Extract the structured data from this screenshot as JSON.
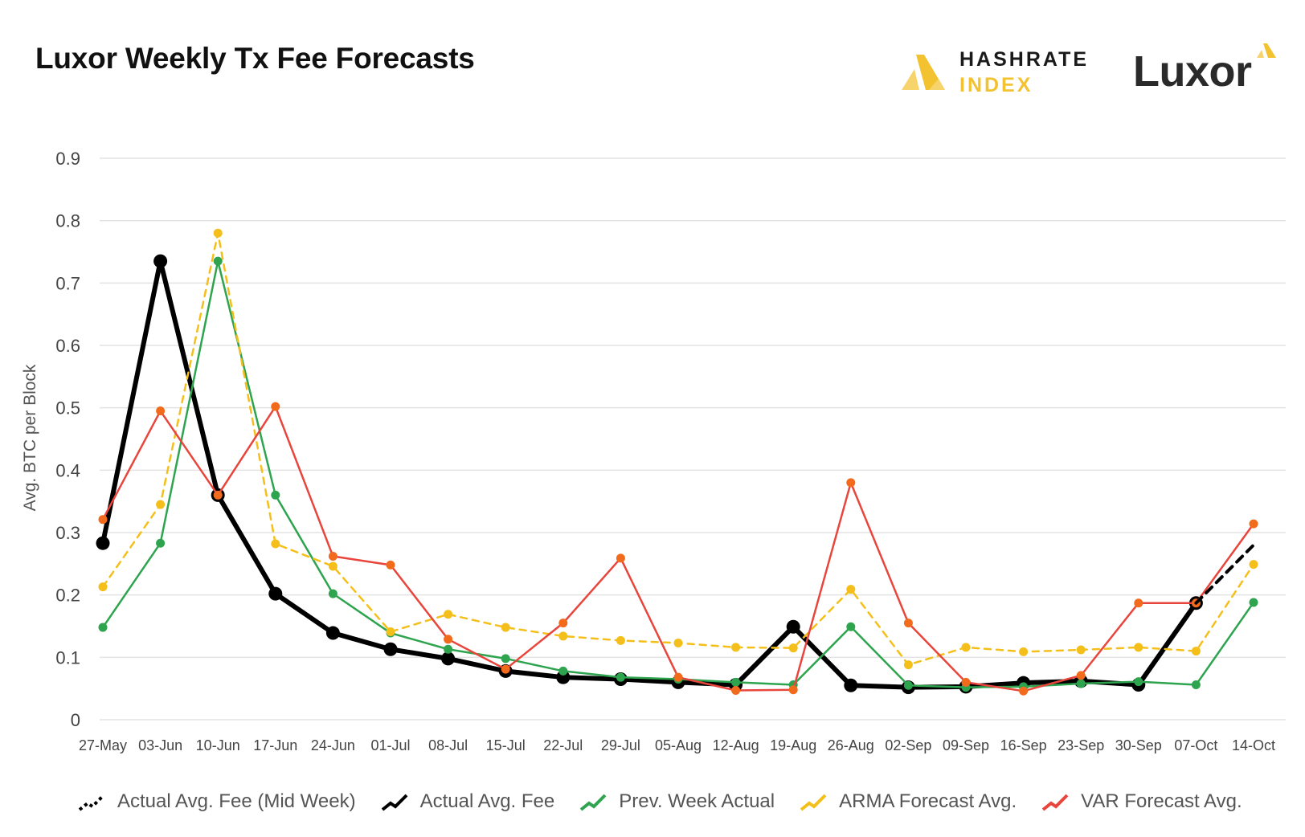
{
  "title": "Luxor Weekly Tx Fee Forecasts",
  "logos": {
    "hashrate_line1": "HASHRATE",
    "hashrate_line2": "INDEX",
    "luxor": "Luxor"
  },
  "colors": {
    "actual": "#000000",
    "prev_week": "#2ea44f",
    "arma": "#f5bf1b",
    "var_line": "#e8453c",
    "var_marker": "#f26a1b",
    "grid": "#e3e3e3",
    "axis_text": "#444444"
  },
  "chart_data": {
    "type": "line",
    "title": "Luxor Weekly Tx Fee Forecasts",
    "xlabel": "",
    "ylabel": "Avg. BTC per Block",
    "ylim": [
      0,
      0.9
    ],
    "yticks": [
      0,
      0.1,
      0.2,
      0.3,
      0.4,
      0.5,
      0.6,
      0.7,
      0.8,
      0.9
    ],
    "ytick_labels": [
      "0",
      "0.1",
      "0.2",
      "0.3",
      "0.4",
      "0.5",
      "0.6",
      "0.7",
      "0.8",
      "0.9"
    ],
    "grid": true,
    "legend_position": "bottom",
    "categories": [
      "27-May",
      "03-Jun",
      "10-Jun",
      "17-Jun",
      "24-Jun",
      "01-Jul",
      "08-Jul",
      "15-Jul",
      "22-Jul",
      "29-Jul",
      "05-Aug",
      "12-Aug",
      "19-Aug",
      "26-Aug",
      "02-Sep",
      "09-Sep",
      "16-Sep",
      "23-Sep",
      "30-Sep",
      "07-Oct",
      "14-Oct"
    ],
    "series": [
      {
        "name": "Actual Avg. Fee (Mid Week)",
        "style": "dashed-black",
        "values": [
          null,
          null,
          null,
          null,
          null,
          null,
          null,
          null,
          null,
          null,
          null,
          null,
          null,
          null,
          null,
          null,
          null,
          null,
          null,
          0.187,
          0.28
        ]
      },
      {
        "name": "Actual Avg. Fee",
        "style": "solid-black",
        "values": [
          0.283,
          0.735,
          0.36,
          0.202,
          0.139,
          0.113,
          0.098,
          0.078,
          0.068,
          0.065,
          0.06,
          0.056,
          0.149,
          0.055,
          0.052,
          0.053,
          0.059,
          0.062,
          0.056,
          0.187,
          null
        ]
      },
      {
        "name": "Prev. Week Actual",
        "style": "solid-green",
        "values": [
          0.148,
          0.283,
          0.735,
          0.36,
          0.202,
          0.139,
          0.113,
          0.098,
          0.078,
          0.068,
          0.065,
          0.06,
          0.056,
          0.149,
          0.055,
          0.052,
          0.053,
          0.058,
          0.061,
          0.056,
          0.188
        ]
      },
      {
        "name": "ARMA Forecast Avg.",
        "style": "dashed-yellow",
        "values": [
          0.213,
          0.345,
          0.78,
          0.282,
          0.246,
          0.141,
          0.169,
          0.148,
          0.134,
          0.127,
          0.123,
          0.116,
          0.115,
          0.209,
          0.088,
          0.116,
          0.109,
          0.112,
          0.116,
          0.11,
          0.249
        ]
      },
      {
        "name": "VAR Forecast Avg.",
        "style": "solid-red",
        "values": [
          0.321,
          0.495,
          0.36,
          0.502,
          0.262,
          0.248,
          0.129,
          0.081,
          0.155,
          0.259,
          0.068,
          0.047,
          0.048,
          0.38,
          0.155,
          0.06,
          0.046,
          0.071,
          0.187,
          0.187,
          0.314
        ]
      }
    ]
  },
  "legend": [
    {
      "key": "mid",
      "label": "Actual Avg. Fee (Mid Week)"
    },
    {
      "key": "actual",
      "label": "Actual Avg. Fee"
    },
    {
      "key": "prev",
      "label": "Prev. Week Actual"
    },
    {
      "key": "arma",
      "label": "ARMA Forecast Avg."
    },
    {
      "key": "var",
      "label": "VAR Forecast Avg."
    }
  ]
}
